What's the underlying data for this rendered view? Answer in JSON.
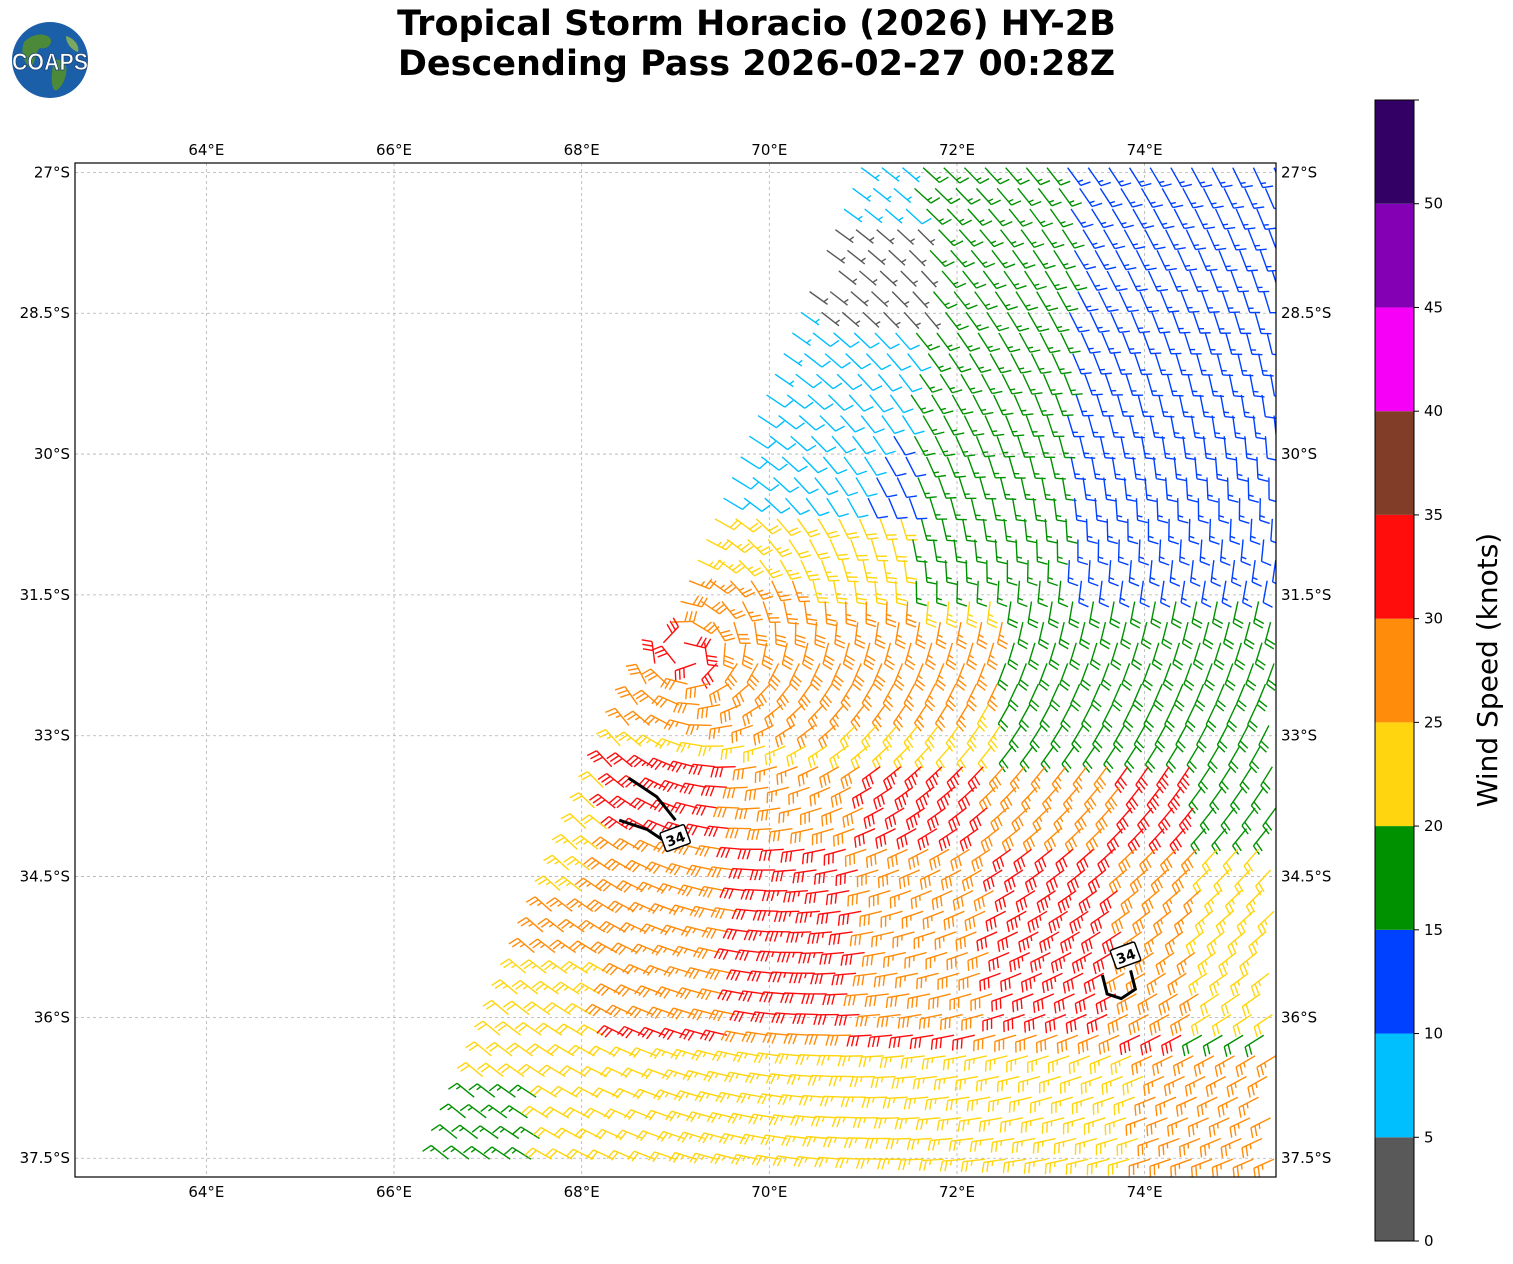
{
  "title": {
    "line1": "Tropical Storm Horacio (2026) HY-2B",
    "line2": "Descending Pass 2026-02-27 00:28Z"
  },
  "logo": {
    "text": "COAPS",
    "icon": "globe-icon"
  },
  "map": {
    "extent": {
      "lon_min": 62.6,
      "lon_max": 75.4,
      "lat_min": -37.7,
      "lat_max": -26.9
    },
    "gridlines": true,
    "lon_ticks": [
      {
        "value": 64,
        "label": "64°E"
      },
      {
        "value": 66,
        "label": "66°E"
      },
      {
        "value": 68,
        "label": "68°E"
      },
      {
        "value": 70,
        "label": "70°E"
      },
      {
        "value": 72,
        "label": "72°E"
      },
      {
        "value": 74,
        "label": "74°E"
      }
    ],
    "lat_ticks": [
      {
        "value": -27,
        "label": "27°S"
      },
      {
        "value": -28.5,
        "label": "28.5°S"
      },
      {
        "value": -30,
        "label": "30°S"
      },
      {
        "value": -31.5,
        "label": "31.5°S"
      },
      {
        "value": -33,
        "label": "33°S"
      },
      {
        "value": -34.5,
        "label": "34.5°S"
      },
      {
        "value": -36,
        "label": "36°S"
      },
      {
        "value": -37.5,
        "label": "37.5°S"
      }
    ],
    "storm_center": {
      "lon": 69.1,
      "lat": -32.1
    },
    "contour_34kt": {
      "label": "34",
      "segments": [
        {
          "points": [
            [
              68.4,
              -33.9
            ],
            [
              68.7,
              -34.0
            ],
            [
              69.0,
              -34.2
            ]
          ]
        },
        {
          "points": [
            [
              68.5,
              -33.45
            ],
            [
              68.8,
              -33.65
            ],
            [
              69.0,
              -33.9
            ]
          ]
        },
        {
          "points": [
            [
              73.55,
              -35.55
            ],
            [
              73.6,
              -35.75
            ],
            [
              73.75,
              -35.8
            ],
            [
              73.9,
              -35.7
            ],
            [
              73.85,
              -35.5
            ]
          ]
        }
      ],
      "label_positions": [
        [
          69.0,
          -34.1
        ],
        [
          73.8,
          -35.35
        ]
      ]
    }
  },
  "colorbar": {
    "title": "Wind Speed (knots)",
    "ticks": [
      "0",
      "5",
      "10",
      "15",
      "20",
      "25",
      "30",
      "35",
      "40",
      "45",
      "50"
    ],
    "bins": [
      {
        "min": 0,
        "max": 5,
        "color": "#595959"
      },
      {
        "min": 5,
        "max": 10,
        "color": "#00bfff"
      },
      {
        "min": 10,
        "max": 15,
        "color": "#0040ff"
      },
      {
        "min": 15,
        "max": 20,
        "color": "#009100"
      },
      {
        "min": 20,
        "max": 25,
        "color": "#ffd50f"
      },
      {
        "min": 25,
        "max": 30,
        "color": "#ff8c0a"
      },
      {
        "min": 30,
        "max": 35,
        "color": "#ff0d0d"
      },
      {
        "min": 35,
        "max": 40,
        "color": "#813d28"
      },
      {
        "min": 40,
        "max": 45,
        "color": "#f700f7"
      },
      {
        "min": 45,
        "max": 50,
        "color": "#8400b5"
      },
      {
        "min": 50,
        "max": 55,
        "color": "#330066"
      }
    ]
  },
  "swath": {
    "top_edge_lon": 71.0,
    "bottom_edge_lon": 66.5,
    "spacing_deg": 0.22
  }
}
